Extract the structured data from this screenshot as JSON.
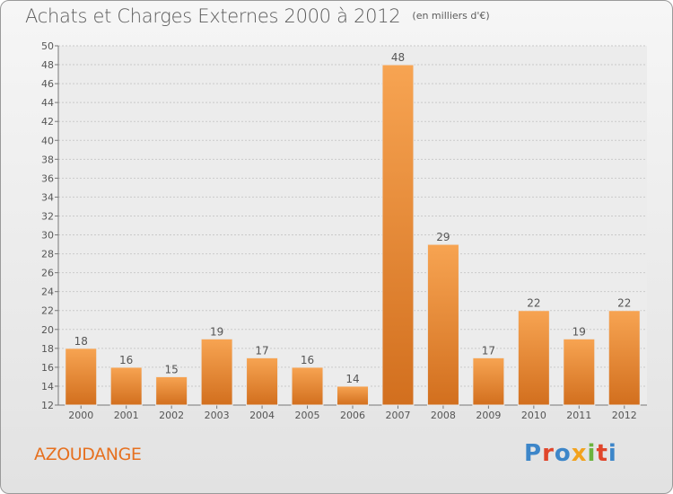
{
  "header": {
    "title": "Achats et Charges Externes 2000 à 2012",
    "subtitle": "(en milliers d'€)"
  },
  "footer": {
    "commune": "AZOUDANGE",
    "brand": "Proxiti"
  },
  "colors": {
    "bar_light": "#f7a452",
    "bar_dark": "#d26f1e",
    "commune_text": "#e6701f",
    "logo": [
      "#3d86c9",
      "#e0462b",
      "#3d86c9",
      "#f2a21e",
      "#6bb33d",
      "#e0462b",
      "#3d86c9"
    ]
  },
  "chart_data": {
    "type": "bar",
    "categories": [
      "2000",
      "2001",
      "2002",
      "2003",
      "2004",
      "2005",
      "2006",
      "2007",
      "2008",
      "2009",
      "2010",
      "2011",
      "2012"
    ],
    "values": [
      18,
      16,
      15,
      19,
      17,
      16,
      14,
      48,
      29,
      17,
      22,
      19,
      22
    ],
    "ylim": [
      12,
      50
    ],
    "yticks": [
      12,
      14,
      16,
      18,
      20,
      22,
      24,
      26,
      28,
      30,
      32,
      34,
      36,
      38,
      40,
      42,
      44,
      46,
      48,
      50
    ],
    "grid": true,
    "data_labels": true
  }
}
